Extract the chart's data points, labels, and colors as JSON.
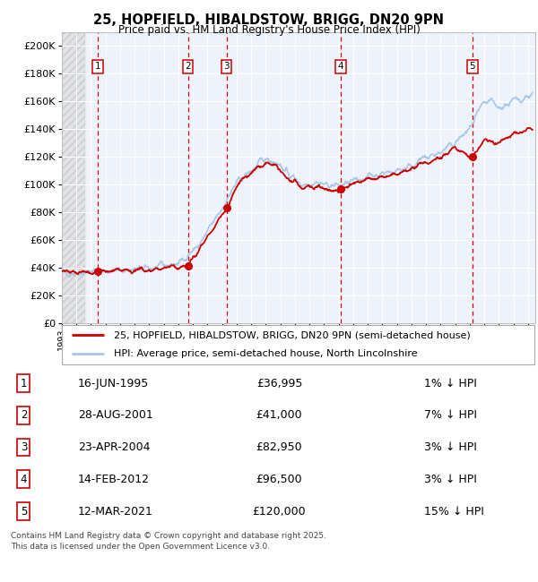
{
  "title": "25, HOPFIELD, HIBALDSTOW, BRIGG, DN20 9PN",
  "subtitle": "Price paid vs. HM Land Registry's House Price Index (HPI)",
  "xlim_start": 1993.0,
  "xlim_end": 2025.5,
  "ylim": [
    0,
    210000
  ],
  "yticks": [
    0,
    20000,
    40000,
    60000,
    80000,
    100000,
    120000,
    140000,
    160000,
    180000,
    200000
  ],
  "ytick_labels": [
    "£0",
    "£20K",
    "£40K",
    "£60K",
    "£80K",
    "£100K",
    "£120K",
    "£140K",
    "£160K",
    "£180K",
    "£200K"
  ],
  "hpi_color": "#a8c8e8",
  "price_color": "#cc0000",
  "bg_color": "#eef3fb",
  "sale_dates_x": [
    1995.45,
    2001.65,
    2004.3,
    2012.12,
    2021.19
  ],
  "sale_prices_y": [
    36995,
    41000,
    82950,
    96500,
    120000
  ],
  "sale_labels": [
    "1",
    "2",
    "3",
    "4",
    "5"
  ],
  "sale_table": [
    [
      "1",
      "16-JUN-1995",
      "£36,995",
      "1% ↓ HPI"
    ],
    [
      "2",
      "28-AUG-2001",
      "£41,000",
      "7% ↓ HPI"
    ],
    [
      "3",
      "23-APR-2004",
      "£82,950",
      "3% ↓ HPI"
    ],
    [
      "4",
      "14-FEB-2012",
      "£96,500",
      "3% ↓ HPI"
    ],
    [
      "5",
      "12-MAR-2021",
      "£120,000",
      "15% ↓ HPI"
    ]
  ],
  "legend1": "25, HOPFIELD, HIBALDSTOW, BRIGG, DN20 9PN (semi-detached house)",
  "legend2": "HPI: Average price, semi-detached house, North Lincolnshire",
  "footer": "Contains HM Land Registry data © Crown copyright and database right 2025.\nThis data is licensed under the Open Government Licence v3.0.",
  "hpi_key_years": [
    1993.0,
    1994.0,
    1995.5,
    1997.0,
    1999.0,
    2001.0,
    2002.5,
    2004.0,
    2005.0,
    2006.0,
    2007.0,
    2007.8,
    2008.5,
    2009.5,
    2010.5,
    2011.0,
    2012.0,
    2013.0,
    2014.0,
    2015.0,
    2016.0,
    2017.0,
    2018.0,
    2019.0,
    2020.0,
    2021.0,
    2021.5,
    2022.0,
    2022.5,
    2023.0,
    2024.0,
    2025.3
  ],
  "hpi_key_vals": [
    36000,
    36500,
    37200,
    38000,
    39500,
    43000,
    57000,
    83000,
    101000,
    110000,
    119000,
    116000,
    108000,
    100000,
    102000,
    100000,
    99000,
    102000,
    106000,
    108000,
    110000,
    114000,
    119000,
    123000,
    130000,
    140000,
    150000,
    158000,
    160000,
    155000,
    160000,
    165000
  ],
  "price_key_years": [
    1993.0,
    1994.5,
    1995.45,
    1997.0,
    1999.0,
    2001.0,
    2001.65,
    2002.5,
    2004.3,
    2005.0,
    2006.0,
    2007.0,
    2007.8,
    2008.5,
    2009.5,
    2010.5,
    2011.0,
    2012.0,
    2012.12,
    2013.0,
    2014.0,
    2015.0,
    2016.0,
    2017.0,
    2018.0,
    2019.0,
    2020.0,
    2021.0,
    2021.19,
    2022.0,
    2023.0,
    2024.0,
    2025.3
  ],
  "price_key_vals": [
    36000,
    36200,
    36995,
    37200,
    38500,
    40500,
    41000,
    54000,
    82950,
    99000,
    108000,
    115000,
    112000,
    104000,
    97000,
    99000,
    97000,
    95500,
    96500,
    100000,
    103000,
    105000,
    107000,
    111000,
    116000,
    120000,
    127000,
    119000,
    120000,
    132000,
    130000,
    136000,
    140000
  ]
}
